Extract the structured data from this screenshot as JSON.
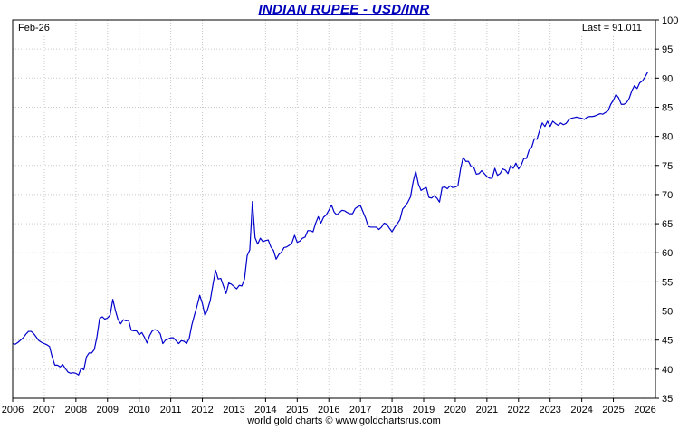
{
  "footer": {
    "caption": "world gold charts © www.goldchartsrus.com"
  },
  "chart_data": {
    "type": "line",
    "title": "INDIAN RUPEE - USD/INR",
    "xlabel": "",
    "ylabel": "",
    "legend": "none",
    "grid": "dotted",
    "annotations": {
      "top_left": "Feb-26",
      "top_right": "Last = 91.011",
      "last_value": 91.011
    },
    "colors": {
      "line": "#0000cc",
      "grid": "#c9c9c9",
      "axis": "#000000",
      "title": "#0000bb"
    },
    "x_range": [
      2006,
      2026.33
    ],
    "y_range": [
      35,
      100
    ],
    "x_ticks": [
      2006,
      2007,
      2008,
      2009,
      2010,
      2011,
      2012,
      2013,
      2014,
      2015,
      2016,
      2017,
      2018,
      2019,
      2020,
      2021,
      2022,
      2023,
      2024,
      2025,
      2026
    ],
    "y_ticks": [
      35,
      40,
      45,
      50,
      55,
      60,
      65,
      70,
      75,
      80,
      85,
      90,
      95,
      100
    ],
    "series_name": "USD/INR exchange rate",
    "interval": "monthly",
    "x_start": {
      "year": 2006,
      "month": 1
    },
    "values": [
      44.4,
      44.3,
      44.6,
      45.0,
      45.4,
      46.0,
      46.5,
      46.5,
      46.1,
      45.5,
      44.9,
      44.6,
      44.4,
      44.2,
      43.9,
      42.1,
      40.7,
      40.7,
      40.4,
      40.8,
      40.1,
      39.5,
      39.3,
      39.4,
      39.3,
      39.0,
      40.2,
      39.9,
      42.1,
      42.8,
      42.8,
      43.4,
      45.6,
      48.7,
      49.0,
      48.6,
      48.8,
      49.3,
      52.0,
      50.1,
      48.5,
      47.8,
      48.5,
      48.3,
      48.4,
      46.7,
      46.6,
      46.6,
      45.9,
      46.3,
      45.5,
      44.5,
      45.8,
      46.6,
      46.8,
      46.6,
      46.1,
      44.4,
      45.0,
      45.2,
      45.4,
      45.4,
      44.9,
      44.4,
      44.9,
      44.8,
      44.4,
      45.3,
      47.6,
      49.3,
      50.9,
      52.7,
      51.3,
      49.2,
      50.3,
      51.8,
      54.5,
      57.0,
      55.5,
      55.6,
      54.3,
      53.0,
      54.8,
      54.6,
      54.2,
      53.8,
      54.4,
      54.3,
      55.5,
      59.5,
      60.5,
      68.8,
      62.6,
      61.5,
      62.5,
      61.9,
      62.1,
      62.2,
      61.0,
      60.4,
      58.9,
      59.7,
      60.1,
      60.9,
      61.0,
      61.3,
      61.7,
      63.0,
      61.8,
      62.0,
      62.5,
      62.7,
      63.8,
      63.8,
      63.6,
      65.1,
      66.2,
      65.1,
      66.1,
      66.5,
      67.3,
      68.2,
      67.0,
      66.5,
      66.9,
      67.3,
      67.2,
      66.9,
      66.7,
      66.7,
      67.6,
      67.9,
      68.1,
      67.0,
      65.9,
      64.5,
      64.4,
      64.4,
      64.4,
      64.0,
      64.4,
      65.1,
      64.9,
      64.2,
      63.6,
      64.4,
      65.0,
      65.7,
      67.5,
      68.0,
      68.7,
      69.6,
      72.2,
      74.0,
      71.8,
      70.7,
      71.0,
      71.2,
      69.5,
      69.4,
      69.8,
      69.4,
      68.7,
      71.2,
      71.3,
      71.0,
      71.5,
      71.2,
      71.3,
      71.5,
      74.4,
      76.4,
      75.7,
      75.7,
      74.8,
      74.7,
      73.5,
      73.6,
      74.1,
      73.6,
      73.1,
      72.8,
      72.8,
      74.5,
      73.3,
      73.6,
      74.4,
      74.2,
      73.6,
      75.0,
      74.5,
      75.4,
      74.4,
      75.0,
      76.2,
      76.2,
      77.6,
      78.1,
      79.6,
      79.5,
      81.0,
      82.3,
      81.7,
      82.6,
      81.7,
      82.6,
      82.2,
      81.9,
      82.3,
      82.0,
      82.2,
      82.8,
      83.1,
      83.2,
      83.3,
      83.2,
      83.1,
      82.9,
      83.3,
      83.4,
      83.4,
      83.5,
      83.7,
      83.9,
      83.8,
      84.1,
      84.4,
      85.5,
      86.2,
      87.2,
      86.6,
      85.5,
      85.5,
      85.8,
      86.5,
      87.8,
      88.7,
      88.2,
      89.2,
      89.5,
      90.2,
      91.011
    ]
  }
}
